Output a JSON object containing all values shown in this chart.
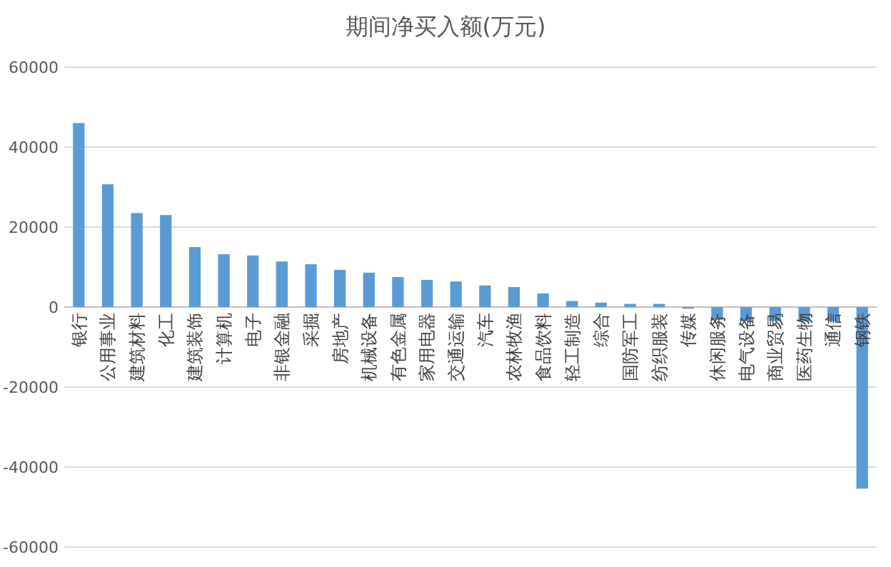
{
  "chart_data": {
    "type": "bar",
    "title": "期间净买入额(万元)",
    "categories": [
      "银行",
      "公用事业",
      "建筑材料",
      "化工",
      "建筑装饰",
      "计算机",
      "电子",
      "非银金融",
      "采掘",
      "房地产",
      "机械设备",
      "有色金属",
      "家用电器",
      "交通运输",
      "汽车",
      "农林牧渔",
      "食品饮料",
      "轻工制造",
      "综合",
      "国防军工",
      "纺织服装",
      "传媒",
      "休闲服务",
      "电气设备",
      "商业贸易",
      "医药生物",
      "通信",
      "钢铁"
    ],
    "values": [
      46000,
      30700,
      23500,
      23000,
      15000,
      13200,
      12900,
      11400,
      10700,
      9300,
      8600,
      7500,
      6800,
      6400,
      5400,
      5000,
      3400,
      1500,
      1100,
      800,
      800,
      -400,
      -3200,
      -3500,
      -3500,
      -3600,
      -3600,
      -45400
    ],
    "color": "#5b9bd5",
    "ylim": [
      -60000,
      60000
    ],
    "yticks": [
      -60000,
      -40000,
      -20000,
      0,
      20000,
      40000,
      60000
    ],
    "grid": "y"
  }
}
